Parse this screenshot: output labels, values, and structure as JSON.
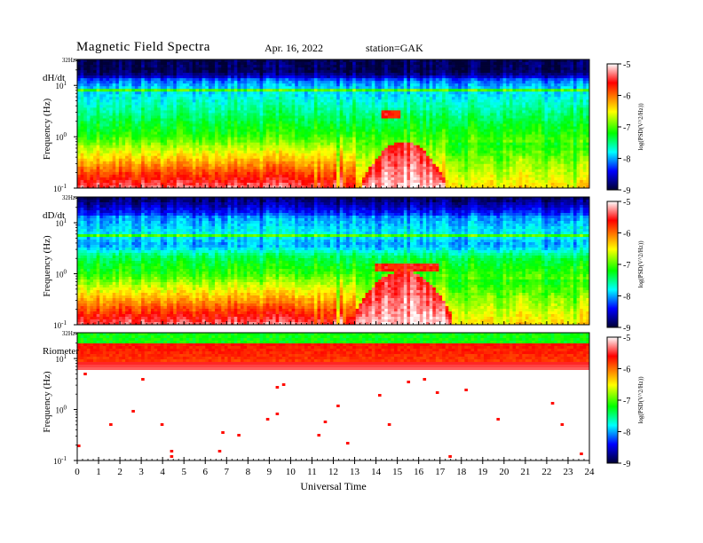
{
  "header": {
    "title": "Magnetic  Field  Spectra",
    "date": "Apr. 16, 2022",
    "station": "station=GAK"
  },
  "x_axis": {
    "label": "Universal  Time",
    "ticks": [
      "0",
      "1",
      "2",
      "3",
      "4",
      "5",
      "6",
      "7",
      "8",
      "9",
      "10",
      "11",
      "12",
      "13",
      "14",
      "15",
      "16",
      "17",
      "18",
      "19",
      "20",
      "21",
      "22",
      "23",
      "24"
    ]
  },
  "colorbar": {
    "label": "log(PSD(V^2/Hz))",
    "ticks": [
      "-5",
      "-6",
      "-7",
      "-8",
      "-9"
    ],
    "stops": [
      "#ffffff",
      "#ff0000",
      "#ffff00",
      "#00ff00",
      "#00ffff",
      "#0000ff",
      "#000033"
    ]
  },
  "chart_data": [
    {
      "type": "heatmap",
      "panel": "dH/dt",
      "xlabel": "Universal  Time",
      "ylabel": "Frequency  (Hz)",
      "xlim": [
        0,
        24
      ],
      "ylim_hz": [
        0.1,
        32
      ],
      "y_scale": "log",
      "y_ticks": [
        "32Hz",
        "10^1",
        "10^0",
        "10^-1"
      ],
      "z_label": "log(PSD(V^2/Hz))",
      "z_range": [
        -9,
        -5
      ],
      "features": {
        "red_low_freq_band_hours": [
          0,
          11
        ],
        "pulsation_hours": [
          11,
          13
        ],
        "white_high_power_hours": [
          13.3,
          17.3
        ],
        "event_band_hours": [
          14.2,
          15.2
        ],
        "blue_band_near_hz": 15
      }
    },
    {
      "type": "heatmap",
      "panel": "dD/dt",
      "xlabel": "Universal  Time",
      "ylabel": "Frequency  (Hz)",
      "xlim": [
        0,
        24
      ],
      "ylim_hz": [
        0.1,
        32
      ],
      "y_scale": "log",
      "y_ticks": [
        "32Hz",
        "10^1",
        "10^0",
        "10^-1"
      ],
      "z_label": "log(PSD(V^2/Hz))",
      "z_range": [
        -9,
        -5
      ],
      "features": {
        "red_low_freq_band_hours": [
          0,
          11
        ],
        "pulsation_hours": [
          11,
          13
        ],
        "white_high_power_hours": [
          13.0,
          17.5
        ],
        "event_band_hours": [
          14.0,
          17.0
        ],
        "blue_band_near_hz": 5
      }
    },
    {
      "type": "heatmap",
      "panel": "Riometer",
      "xlabel": "Universal  Time",
      "ylabel": "Frequency  (Hz)",
      "xlim": [
        0,
        24
      ],
      "ylim_hz": [
        0.1,
        32
      ],
      "y_scale": "log",
      "y_ticks": [
        "32Hz",
        "10^1",
        "10^0",
        "10^-1"
      ],
      "z_label": "log(PSD(V^2/Hz))",
      "z_range": [
        -9,
        -5
      ],
      "features": {
        "green_band_hz": [
          18,
          32
        ],
        "red_band_hz": [
          7,
          18
        ],
        "below_is_white": true
      }
    }
  ]
}
